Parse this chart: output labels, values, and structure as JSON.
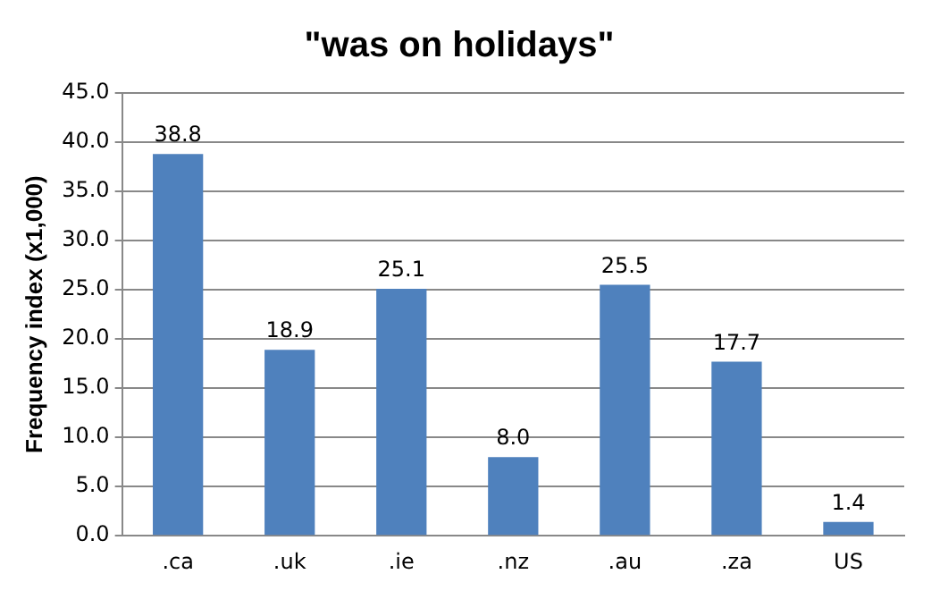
{
  "chart_data": {
    "type": "bar",
    "title": "\"was on holidays\"",
    "ylabel": "Frequency index (x1,000)",
    "categories": [
      ".ca",
      ".uk",
      ".ie",
      ".nz",
      ".au",
      ".za",
      "US"
    ],
    "values": [
      38.8,
      18.9,
      25.1,
      8.0,
      25.5,
      17.7,
      1.4
    ],
    "value_labels": [
      "38.8",
      "18.9",
      "25.1",
      "8.0",
      "25.5",
      "17.7",
      "1.4"
    ],
    "color": "#4f81bd",
    "ylim": [
      0,
      45
    ],
    "yticks": [
      {
        "value": 0,
        "label": "0.0"
      },
      {
        "value": 5,
        "label": "5.0"
      },
      {
        "value": 10,
        "label": "10.0"
      },
      {
        "value": 15,
        "label": "15.0"
      },
      {
        "value": 20,
        "label": "20.0"
      },
      {
        "value": 25,
        "label": "25.0"
      },
      {
        "value": 30,
        "label": "30.0"
      },
      {
        "value": 35,
        "label": "35.0"
      },
      {
        "value": 40,
        "label": "40.0"
      },
      {
        "value": 45,
        "label": "45.0"
      }
    ],
    "grid": "y",
    "legend": false
  }
}
